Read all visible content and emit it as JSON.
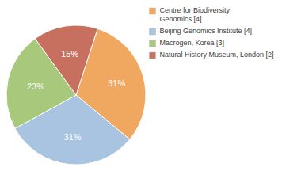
{
  "chart_data": {
    "type": "pie",
    "categories": [
      "Centre for Biodiversity\nGenomics [4]",
      "Beijing Genomics Institute [4]",
      "Macrogen, Korea [3]",
      "Natural History Museum, London [2]"
    ],
    "values": [
      31,
      31,
      23,
      15
    ],
    "value_labels": [
      "31%",
      "31%",
      "23%",
      "15%"
    ],
    "colors": [
      "#f0a860",
      "#a8c4e0",
      "#a8c87c",
      "#c87060"
    ],
    "data_labels": true,
    "legend": "upper right"
  }
}
